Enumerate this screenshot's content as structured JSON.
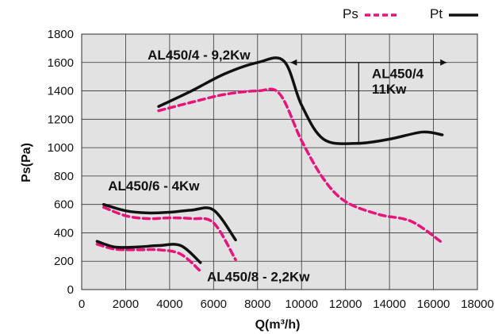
{
  "chart_data": {
    "type": "line",
    "xlabel": "Q(m³/h)",
    "ylabel": "Ps(Pa)",
    "xlim": [
      0,
      18000
    ],
    "ylim": [
      0,
      1800
    ],
    "xticks": [
      0,
      2000,
      4000,
      6000,
      8000,
      10000,
      12000,
      14000,
      16000,
      18000
    ],
    "yticks": [
      0,
      200,
      400,
      600,
      800,
      1000,
      1200,
      1400,
      1600,
      1800
    ],
    "grid": true,
    "legend": {
      "placement": "top-right",
      "entries": [
        {
          "label": "Ps",
          "style": "dashed",
          "color": "#e8147c"
        },
        {
          "label": "Pt",
          "style": "solid",
          "color": "#111111"
        }
      ]
    },
    "series": [
      {
        "group": "AL450/4",
        "kind": "Pt",
        "x": [
          3500,
          5000,
          6500,
          8000,
          9200,
          10000,
          11000,
          12500,
          14000,
          15500,
          16400
        ],
        "y": [
          1290,
          1400,
          1520,
          1600,
          1610,
          1300,
          1060,
          1030,
          1060,
          1110,
          1090
        ]
      },
      {
        "group": "AL450/4",
        "kind": "Ps",
        "x": [
          3500,
          5000,
          6500,
          8000,
          9000,
          10000,
          11000,
          12000,
          13500,
          15000,
          16400
        ],
        "y": [
          1260,
          1320,
          1375,
          1400,
          1380,
          1050,
          780,
          620,
          530,
          480,
          330
        ]
      },
      {
        "group": "AL450/6",
        "kind": "Pt",
        "x": [
          1000,
          2000,
          3000,
          4000,
          5000,
          6000,
          7000
        ],
        "y": [
          600,
          555,
          540,
          545,
          560,
          560,
          350
        ]
      },
      {
        "group": "AL450/6",
        "kind": "Ps",
        "x": [
          1000,
          2000,
          3000,
          4000,
          5000,
          6000,
          7000
        ],
        "y": [
          580,
          520,
          500,
          505,
          500,
          470,
          210
        ]
      },
      {
        "group": "AL450/8",
        "kind": "Pt",
        "x": [
          700,
          1500,
          2500,
          3500,
          4500,
          5400
        ],
        "y": [
          340,
          300,
          300,
          310,
          310,
          190
        ]
      },
      {
        "group": "AL450/8",
        "kind": "Ps",
        "x": [
          700,
          1500,
          2500,
          3500,
          4500,
          5400
        ],
        "y": [
          320,
          285,
          280,
          280,
          250,
          130
        ]
      }
    ],
    "annotations": [
      {
        "text": "AL450/4 - 9,2Kw",
        "x": 3000,
        "y": 1620
      },
      {
        "text": "AL450/4",
        "x": 13200,
        "y": 1490
      },
      {
        "text": "11Kw",
        "x": 13200,
        "y": 1380
      },
      {
        "text": "AL450/6 - 4Kw",
        "x": 1200,
        "y": 700
      },
      {
        "text": "AL450/8 - 2,2Kw",
        "x": 5700,
        "y": 60
      }
    ],
    "range_arrow": {
      "x_from": 9500,
      "x_to": 16600,
      "y": 1600,
      "drop_x": 12600,
      "drop_to_y": 1030
    }
  }
}
